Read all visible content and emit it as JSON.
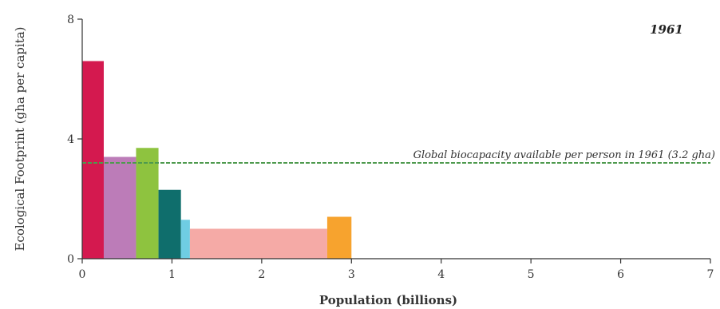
{
  "chart_data": {
    "type": "bar",
    "subtype": "variable-width",
    "year_label": "1961",
    "xlabel": "Population (billions)",
    "ylabel": "Ecological Footprint (gha per capita)",
    "xlim": [
      0,
      7
    ],
    "ylim": [
      0,
      8
    ],
    "x_ticks": [
      "0",
      "1",
      "2",
      "3",
      "4",
      "5",
      "6",
      "7"
    ],
    "y_ticks": [
      "0",
      "4",
      "8"
    ],
    "bars": [
      {
        "x0": 0.0,
        "x1": 0.24,
        "value": 6.6,
        "color": "#d4194f"
      },
      {
        "x0": 0.24,
        "x1": 0.6,
        "value": 3.4,
        "color": "#bc7cb8"
      },
      {
        "x0": 0.6,
        "x1": 0.85,
        "value": 3.7,
        "color": "#8ec33f"
      },
      {
        "x0": 0.85,
        "x1": 1.1,
        "value": 2.3,
        "color": "#0f6e6c"
      },
      {
        "x0": 1.1,
        "x1": 1.2,
        "value": 1.3,
        "color": "#6fcde3"
      },
      {
        "x0": 1.2,
        "x1": 2.73,
        "value": 1.0,
        "color": "#f5aaa6"
      },
      {
        "x0": 2.73,
        "x1": 3.0,
        "value": 1.4,
        "color": "#f7a32e"
      }
    ],
    "reference_line": {
      "value": 3.2,
      "label": "Global biocapacity available per person in 1961 (3.2 gha)",
      "color": "#4e9a4e"
    },
    "grid": false,
    "legend": "none"
  }
}
